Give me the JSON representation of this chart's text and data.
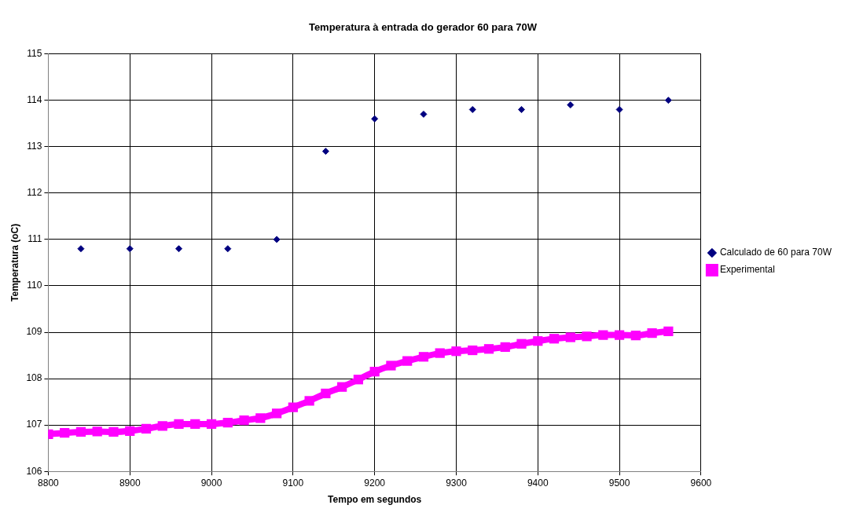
{
  "chart_data": {
    "type": "scatter",
    "title": "Temperatura à entrada do gerador 60 para 70W",
    "xlabel": "Tempo em segundos",
    "ylabel": "Temperatura (oC)",
    "xlim": [
      8800,
      9600
    ],
    "xticks": [
      8800,
      8900,
      9000,
      9100,
      9200,
      9300,
      9400,
      9500,
      9600
    ],
    "ylim": [
      106,
      115
    ],
    "yticks": [
      106,
      107,
      108,
      109,
      110,
      111,
      112,
      113,
      114,
      115
    ],
    "grid": true,
    "legend": "right",
    "series": [
      {
        "name": "Calculado de 60 para 70W",
        "type": "scatter",
        "marker": "diamond",
        "color": "#000080",
        "x": [
          8840,
          8900,
          8960,
          9020,
          9080,
          9140,
          9200,
          9260,
          9320,
          9380,
          9440,
          9500,
          9560
        ],
        "values": [
          110.8,
          110.8,
          110.8,
          110.8,
          111.0,
          112.9,
          113.6,
          113.7,
          113.8,
          113.8,
          113.9,
          113.8,
          114.0
        ]
      },
      {
        "name": "Experimental",
        "type": "line",
        "marker": "square",
        "color": "#ff00ff",
        "x": [
          8800,
          8820,
          8840,
          8860,
          8880,
          8900,
          8920,
          8940,
          8960,
          8980,
          9000,
          9020,
          9040,
          9060,
          9080,
          9100,
          9120,
          9140,
          9160,
          9180,
          9200,
          9220,
          9240,
          9260,
          9280,
          9300,
          9320,
          9340,
          9360,
          9380,
          9400,
          9420,
          9440,
          9460,
          9480,
          9500,
          9520,
          9540,
          9560
        ],
        "values": [
          106.8,
          106.83,
          106.85,
          106.86,
          106.85,
          106.87,
          106.92,
          106.98,
          107.02,
          107.02,
          107.02,
          107.05,
          107.1,
          107.15,
          107.25,
          107.38,
          107.52,
          107.68,
          107.82,
          107.98,
          108.15,
          108.28,
          108.38,
          108.47,
          108.55,
          108.59,
          108.61,
          108.64,
          108.68,
          108.75,
          108.81,
          108.86,
          108.89,
          108.91,
          108.94,
          108.94,
          108.93,
          108.98,
          109.02
        ]
      }
    ]
  }
}
